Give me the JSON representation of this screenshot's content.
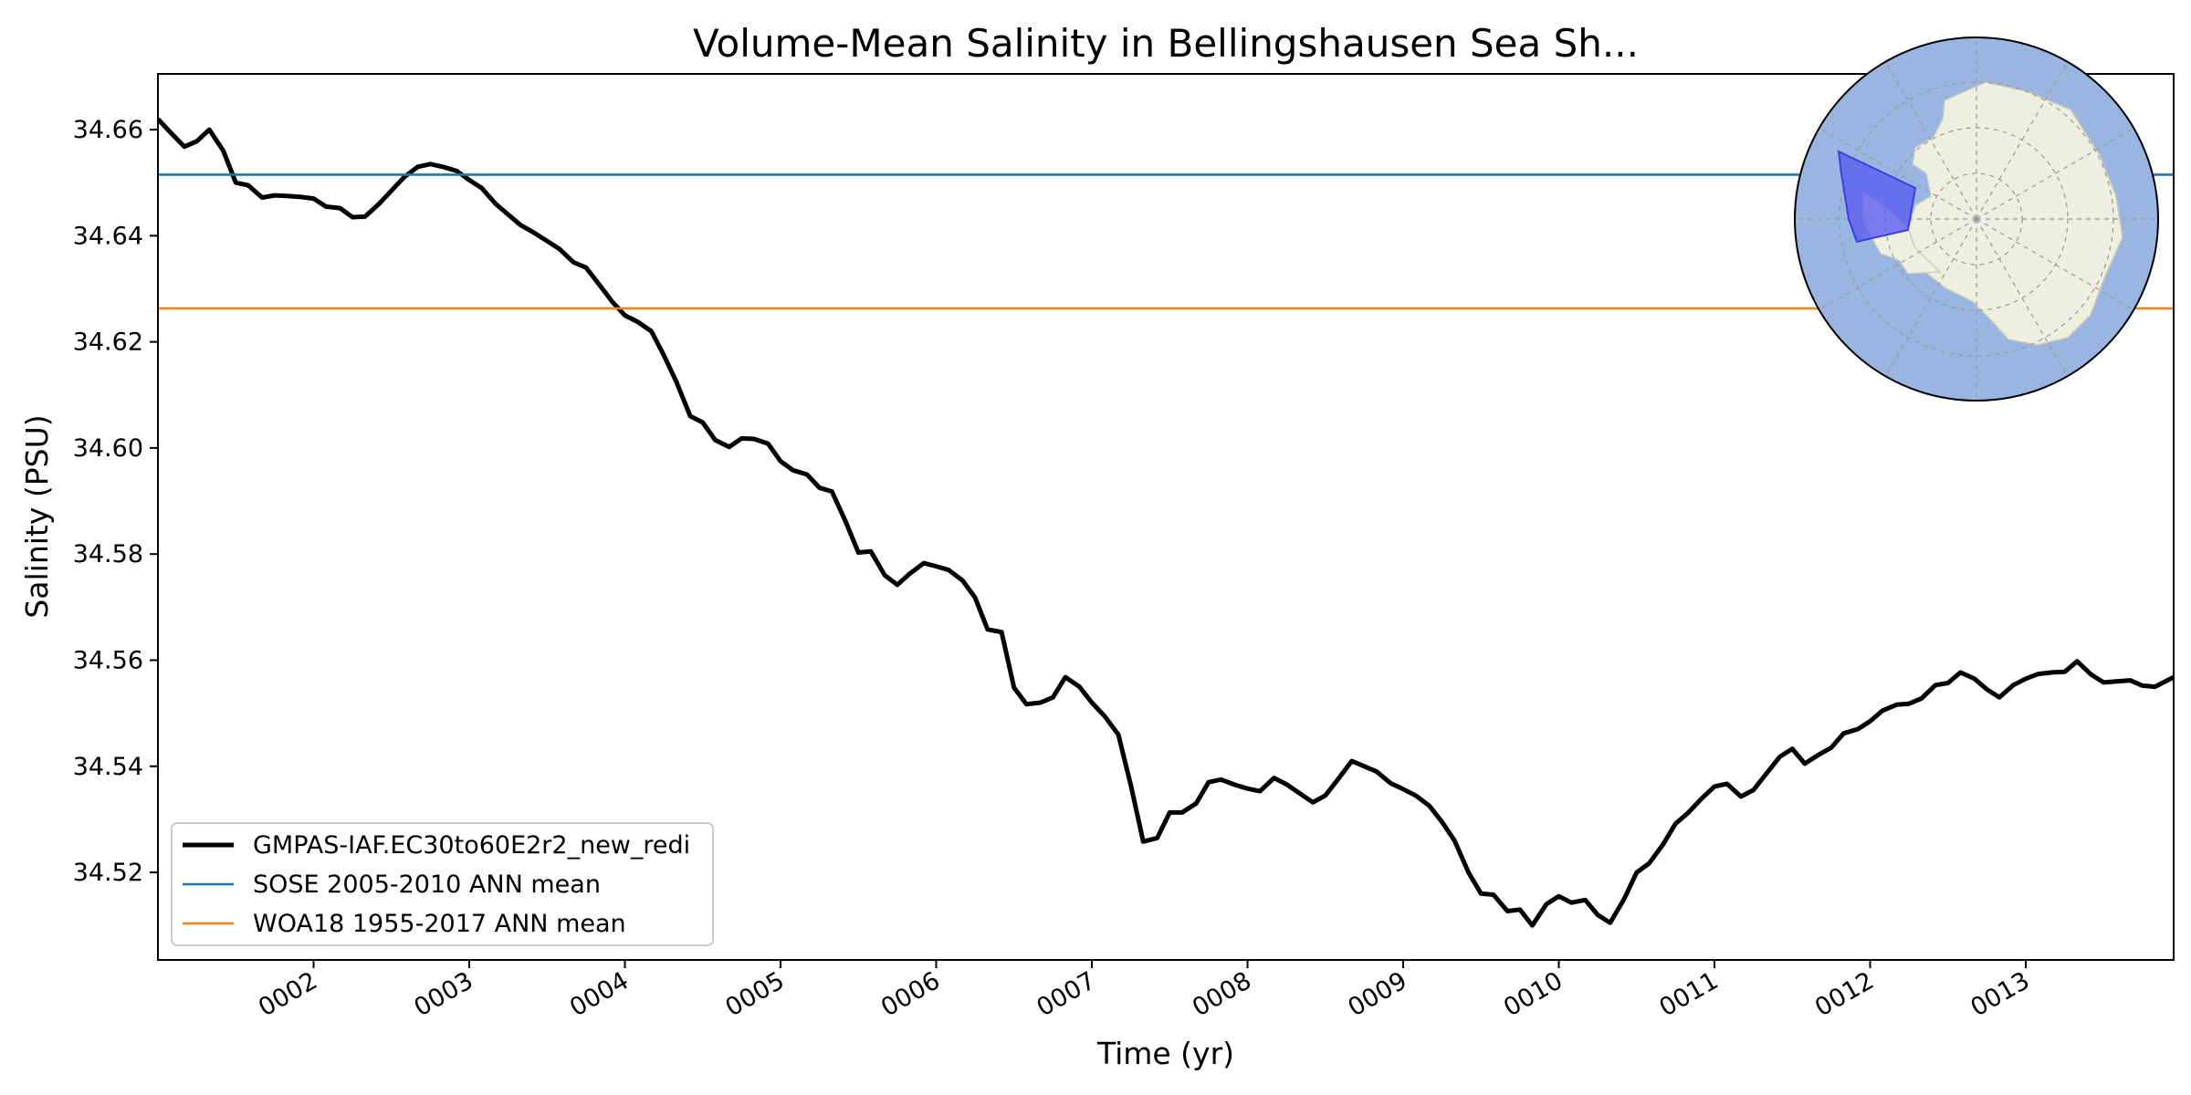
{
  "chart_data": {
    "type": "line",
    "title": "Volume-Mean Salinity in Bellingshausen Sea Sh...",
    "xlabel": "Time (yr)",
    "ylabel": "Salinity (PSU)",
    "xlim": [
      1.0,
      13.95
    ],
    "ylim": [
      34.5035,
      34.6705
    ],
    "x_ticks": [
      2,
      3,
      4,
      5,
      6,
      7,
      8,
      9,
      10,
      11,
      12,
      13
    ],
    "x_tick_labels": [
      "0002",
      "0003",
      "0004",
      "0005",
      "0006",
      "0007",
      "0008",
      "0009",
      "0010",
      "0011",
      "0012",
      "0013"
    ],
    "y_ticks": [
      34.52,
      34.54,
      34.56,
      34.58,
      34.6,
      34.62,
      34.64,
      34.66
    ],
    "y_tick_labels": [
      "34.52",
      "34.54",
      "34.56",
      "34.58",
      "34.60",
      "34.62",
      "34.64",
      "34.66"
    ],
    "grid": false,
    "legend_position": "lower-left",
    "series": [
      {
        "name": "GMPAS-IAF.EC30to60E2r2_new_redi",
        "color": "#000000",
        "x": [
          1.0,
          1.08,
          1.17,
          1.25,
          1.33,
          1.42,
          1.5,
          1.58,
          1.67,
          1.75,
          1.83,
          1.92,
          2.0,
          2.08,
          2.17,
          2.25,
          2.33,
          2.42,
          2.5,
          2.58,
          2.67,
          2.75,
          2.83,
          2.92,
          3.0,
          3.08,
          3.17,
          3.25,
          3.33,
          3.42,
          3.5,
          3.58,
          3.67,
          3.75,
          3.83,
          3.92,
          4.0,
          4.08,
          4.17,
          4.25,
          4.33,
          4.42,
          4.5,
          4.58,
          4.67,
          4.75,
          4.83,
          4.92,
          5.0,
          5.08,
          5.17,
          5.25,
          5.33,
          5.42,
          5.5,
          5.58,
          5.67,
          5.75,
          5.83,
          5.92,
          6.0,
          6.08,
          6.17,
          6.25,
          6.33,
          6.42,
          6.5,
          6.58,
          6.67,
          6.75,
          6.83,
          6.92,
          7.0,
          7.08,
          7.17,
          7.25,
          7.33,
          7.42,
          7.5,
          7.58,
          7.67,
          7.75,
          7.83,
          7.92,
          8.0,
          8.08,
          8.17,
          8.25,
          8.33,
          8.42,
          8.5,
          8.58,
          8.67,
          8.75,
          8.83,
          8.92,
          9.0,
          9.08,
          9.17,
          9.25,
          9.33,
          9.42,
          9.5,
          9.58,
          9.67,
          9.75,
          9.83,
          9.92,
          10.0,
          10.08,
          10.17,
          10.25,
          10.33,
          10.42,
          10.5,
          10.58,
          10.67,
          10.75,
          10.83,
          10.92,
          11.0,
          11.08,
          11.17,
          11.25,
          11.33,
          11.42,
          11.5,
          11.58,
          11.67,
          11.75,
          11.83,
          11.92,
          12.0,
          12.08,
          12.17,
          12.25,
          12.33,
          12.42,
          12.5,
          12.58,
          12.67,
          12.75,
          12.83,
          12.92,
          13.0,
          13.08,
          13.17,
          13.25,
          13.33,
          13.42,
          13.5,
          13.58,
          13.67,
          13.75,
          13.83,
          13.95
        ],
        "y": [
          34.662,
          34.6595,
          34.6568,
          34.6578,
          34.66,
          34.656,
          34.65,
          34.6495,
          34.6472,
          34.6476,
          34.6475,
          34.6473,
          34.647,
          34.6455,
          34.6452,
          34.6435,
          34.6436,
          34.646,
          34.6485,
          34.651,
          34.653,
          34.6535,
          34.653,
          34.6522,
          34.6505,
          34.649,
          34.646,
          34.644,
          34.642,
          34.6405,
          34.639,
          34.6375,
          34.635,
          34.634,
          34.631,
          34.6275,
          34.625,
          34.6238,
          34.622,
          34.6175,
          34.6125,
          34.606,
          34.6048,
          34.6015,
          34.6002,
          34.6018,
          34.6017,
          34.6008,
          34.5975,
          34.5958,
          34.595,
          34.5925,
          34.5918,
          34.586,
          34.5803,
          34.5805,
          34.576,
          34.5742,
          34.5763,
          34.5783,
          34.5777,
          34.577,
          34.575,
          34.5718,
          34.5658,
          34.5653,
          34.5548,
          34.5517,
          34.552,
          34.553,
          34.5568,
          34.555,
          34.552,
          34.5495,
          34.546,
          34.5365,
          34.5258,
          34.5265,
          34.5313,
          34.5313,
          34.533,
          34.537,
          34.5375,
          34.5365,
          34.5358,
          34.5353,
          34.5378,
          34.5366,
          34.535,
          34.5332,
          34.5345,
          34.5375,
          34.541,
          34.54,
          34.539,
          34.5368,
          34.5357,
          34.5345,
          34.5325,
          34.5295,
          34.526,
          34.52,
          34.516,
          34.5158,
          34.5127,
          34.513,
          34.51,
          34.514,
          34.5155,
          34.5143,
          34.5148,
          34.512,
          34.5105,
          34.515,
          34.52,
          34.5217,
          34.5253,
          34.5292,
          34.5312,
          34.534,
          34.5362,
          34.5367,
          34.5343,
          34.5355,
          34.5385,
          34.5418,
          34.5433,
          34.5405,
          34.5422,
          34.5435,
          34.5462,
          34.547,
          34.5485,
          34.5505,
          34.5516,
          34.5518,
          34.5528,
          34.5553,
          34.5557,
          34.5577,
          34.5565,
          34.5545,
          34.553,
          34.5553,
          34.5565,
          34.5574,
          34.5577,
          34.5578,
          34.5598,
          34.5573,
          34.5558,
          34.556,
          34.5562,
          34.5552,
          34.555,
          34.5568
        ]
      },
      {
        "name": "SOSE 2005-2010 ANN mean",
        "color": "#1f77b4",
        "constant": 34.6515
      },
      {
        "name": "WOA18 1955-2017 ANN mean",
        "color": "#ff7f0e",
        "constant": 34.6263
      }
    ],
    "inset_map": {
      "region_fill": "#5a5ef0",
      "ocean_fill": "#99b6e2",
      "land_fill": "#efefdf"
    }
  }
}
